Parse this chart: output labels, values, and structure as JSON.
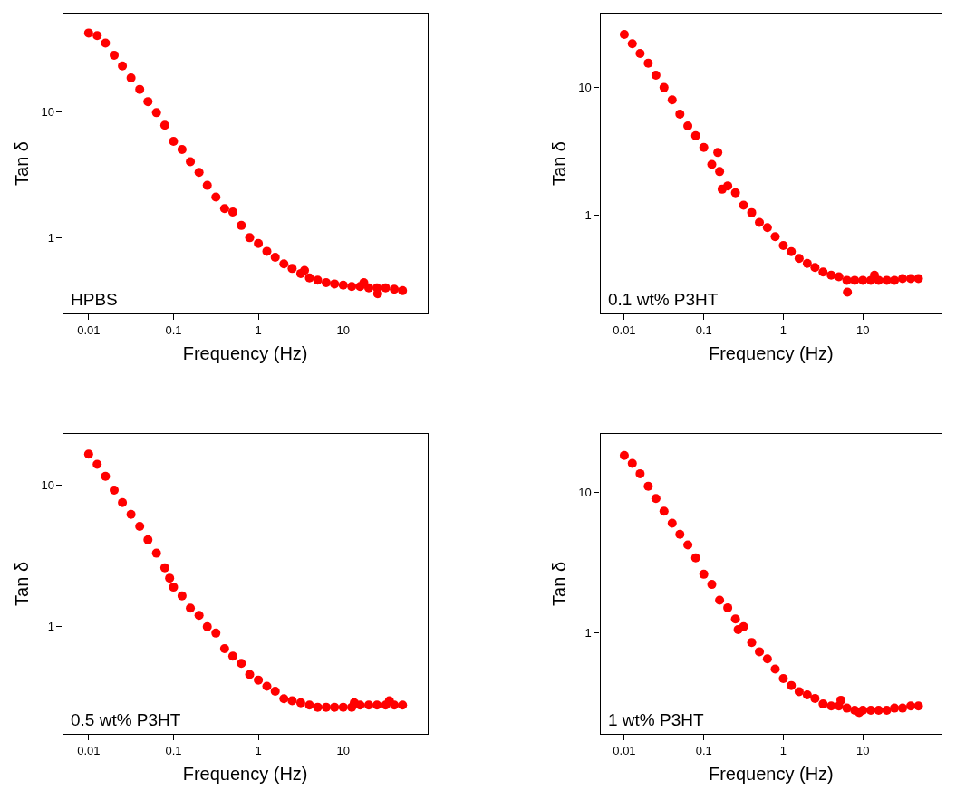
{
  "chart_data": [
    {
      "type": "scatter",
      "xlabel": "Frequency (Hz)",
      "ylabel": "Tan δ",
      "log": "xy",
      "marker": "circle",
      "annotations": [
        "HPBS"
      ],
      "xlim": [
        0.005,
        98
      ],
      "ylim": [
        0.25,
        60
      ],
      "xticks": [
        0.01,
        0.1,
        1,
        10
      ],
      "yticks": [
        1,
        10
      ],
      "series": [
        {
          "color": "#ff0000",
          "x": [
            0.01,
            0.0126,
            0.0158,
            0.02,
            0.025,
            0.0316,
            0.04,
            0.05,
            0.063,
            0.079,
            0.1,
            0.126,
            0.158,
            0.2,
            0.25,
            0.316,
            0.4,
            0.5,
            0.63,
            0.79,
            1,
            1.26,
            1.58,
            2,
            2.5,
            3.16,
            3.5,
            4,
            5,
            6.3,
            7.9,
            10,
            12.6,
            15.8,
            17.5,
            20,
            25,
            25.5,
            31.6,
            40,
            50
          ],
          "values": [
            42,
            40,
            35,
            28,
            23,
            18.5,
            15,
            12,
            9.8,
            7.8,
            5.8,
            5.0,
            4.0,
            3.3,
            2.6,
            2.1,
            1.7,
            1.6,
            1.25,
            1.0,
            0.9,
            0.78,
            0.7,
            0.62,
            0.57,
            0.52,
            0.55,
            0.48,
            0.46,
            0.44,
            0.43,
            0.42,
            0.41,
            0.41,
            0.44,
            0.4,
            0.4,
            0.36,
            0.4,
            0.39,
            0.38
          ]
        }
      ]
    },
    {
      "type": "scatter",
      "xlabel": "Frequency (Hz)",
      "ylabel": "Tan δ",
      "log": "xy",
      "marker": "circle",
      "annotations": [
        "0.1 wt% P3HT"
      ],
      "xlim": [
        0.005,
        98
      ],
      "ylim": [
        0.17,
        38
      ],
      "xticks": [
        0.01,
        0.1,
        1,
        10
      ],
      "yticks": [
        1,
        10
      ],
      "series": [
        {
          "color": "#ff0000",
          "x": [
            0.01,
            0.0126,
            0.0158,
            0.02,
            0.025,
            0.0316,
            0.04,
            0.05,
            0.063,
            0.079,
            0.1,
            0.126,
            0.15,
            0.158,
            0.17,
            0.2,
            0.25,
            0.316,
            0.4,
            0.5,
            0.63,
            0.79,
            1,
            1.26,
            1.58,
            2,
            2.5,
            3.16,
            4,
            5,
            6.3,
            6.4,
            7.9,
            10,
            12.6,
            14,
            15.8,
            20,
            25,
            31.6,
            40,
            50
          ],
          "values": [
            26,
            22,
            18.5,
            15.5,
            12.5,
            10,
            8,
            6.2,
            5,
            4.2,
            3.4,
            2.5,
            3.1,
            2.2,
            1.6,
            1.7,
            1.5,
            1.2,
            1.05,
            0.88,
            0.8,
            0.68,
            0.58,
            0.52,
            0.46,
            0.42,
            0.39,
            0.36,
            0.34,
            0.33,
            0.31,
            0.25,
            0.31,
            0.31,
            0.31,
            0.34,
            0.31,
            0.31,
            0.31,
            0.32,
            0.32,
            0.32
          ]
        }
      ]
    },
    {
      "type": "scatter",
      "xlabel": "Frequency (Hz)",
      "ylabel": "Tan δ",
      "log": "xy",
      "marker": "circle",
      "annotations": [
        "0.5 wt% P3HT"
      ],
      "xlim": [
        0.005,
        98
      ],
      "ylim": [
        0.175,
        23
      ],
      "xticks": [
        0.01,
        0.1,
        1,
        10
      ],
      "yticks": [
        1,
        10
      ],
      "series": [
        {
          "color": "#ff0000",
          "x": [
            0.01,
            0.0126,
            0.0158,
            0.02,
            0.025,
            0.0316,
            0.04,
            0.05,
            0.063,
            0.079,
            0.09,
            0.1,
            0.126,
            0.158,
            0.2,
            0.25,
            0.316,
            0.4,
            0.5,
            0.63,
            0.79,
            1,
            1.26,
            1.58,
            2,
            2.5,
            3.16,
            4,
            5,
            6.3,
            7.9,
            10,
            12.6,
            13.5,
            15.8,
            20,
            25,
            31.6,
            35,
            40,
            50
          ],
          "values": [
            16.5,
            14,
            11.5,
            9.2,
            7.5,
            6.2,
            5.1,
            4.1,
            3.3,
            2.6,
            2.2,
            1.9,
            1.65,
            1.35,
            1.2,
            1.0,
            0.9,
            0.7,
            0.62,
            0.55,
            0.46,
            0.42,
            0.38,
            0.35,
            0.31,
            0.3,
            0.29,
            0.28,
            0.27,
            0.27,
            0.27,
            0.27,
            0.27,
            0.29,
            0.28,
            0.28,
            0.28,
            0.28,
            0.3,
            0.28,
            0.28
          ]
        }
      ]
    },
    {
      "type": "scatter",
      "xlabel": "Frequency (Hz)",
      "ylabel": "Tan δ",
      "log": "xy",
      "marker": "circle",
      "annotations": [
        "1 wt% P3HT"
      ],
      "xlim": [
        0.005,
        98
      ],
      "ylim": [
        0.19,
        26
      ],
      "xticks": [
        0.01,
        0.1,
        1,
        10
      ],
      "yticks": [
        1,
        10
      ],
      "series": [
        {
          "color": "#ff0000",
          "x": [
            0.01,
            0.0126,
            0.0158,
            0.02,
            0.025,
            0.0316,
            0.04,
            0.05,
            0.063,
            0.079,
            0.1,
            0.126,
            0.158,
            0.2,
            0.25,
            0.27,
            0.316,
            0.4,
            0.5,
            0.63,
            0.79,
            1,
            1.26,
            1.58,
            2,
            2.5,
            3.16,
            4,
            5,
            5.3,
            6.3,
            7.9,
            9,
            10,
            12.6,
            15.8,
            20,
            25,
            31.6,
            40,
            50
          ],
          "values": [
            18.2,
            16,
            13.5,
            11,
            9,
            7.3,
            6,
            5,
            4.2,
            3.4,
            2.6,
            2.2,
            1.7,
            1.5,
            1.25,
            1.05,
            1.1,
            0.85,
            0.73,
            0.65,
            0.55,
            0.47,
            0.42,
            0.38,
            0.36,
            0.34,
            0.31,
            0.3,
            0.3,
            0.33,
            0.29,
            0.28,
            0.27,
            0.28,
            0.28,
            0.28,
            0.28,
            0.29,
            0.29,
            0.3,
            0.3
          ]
        }
      ]
    }
  ]
}
